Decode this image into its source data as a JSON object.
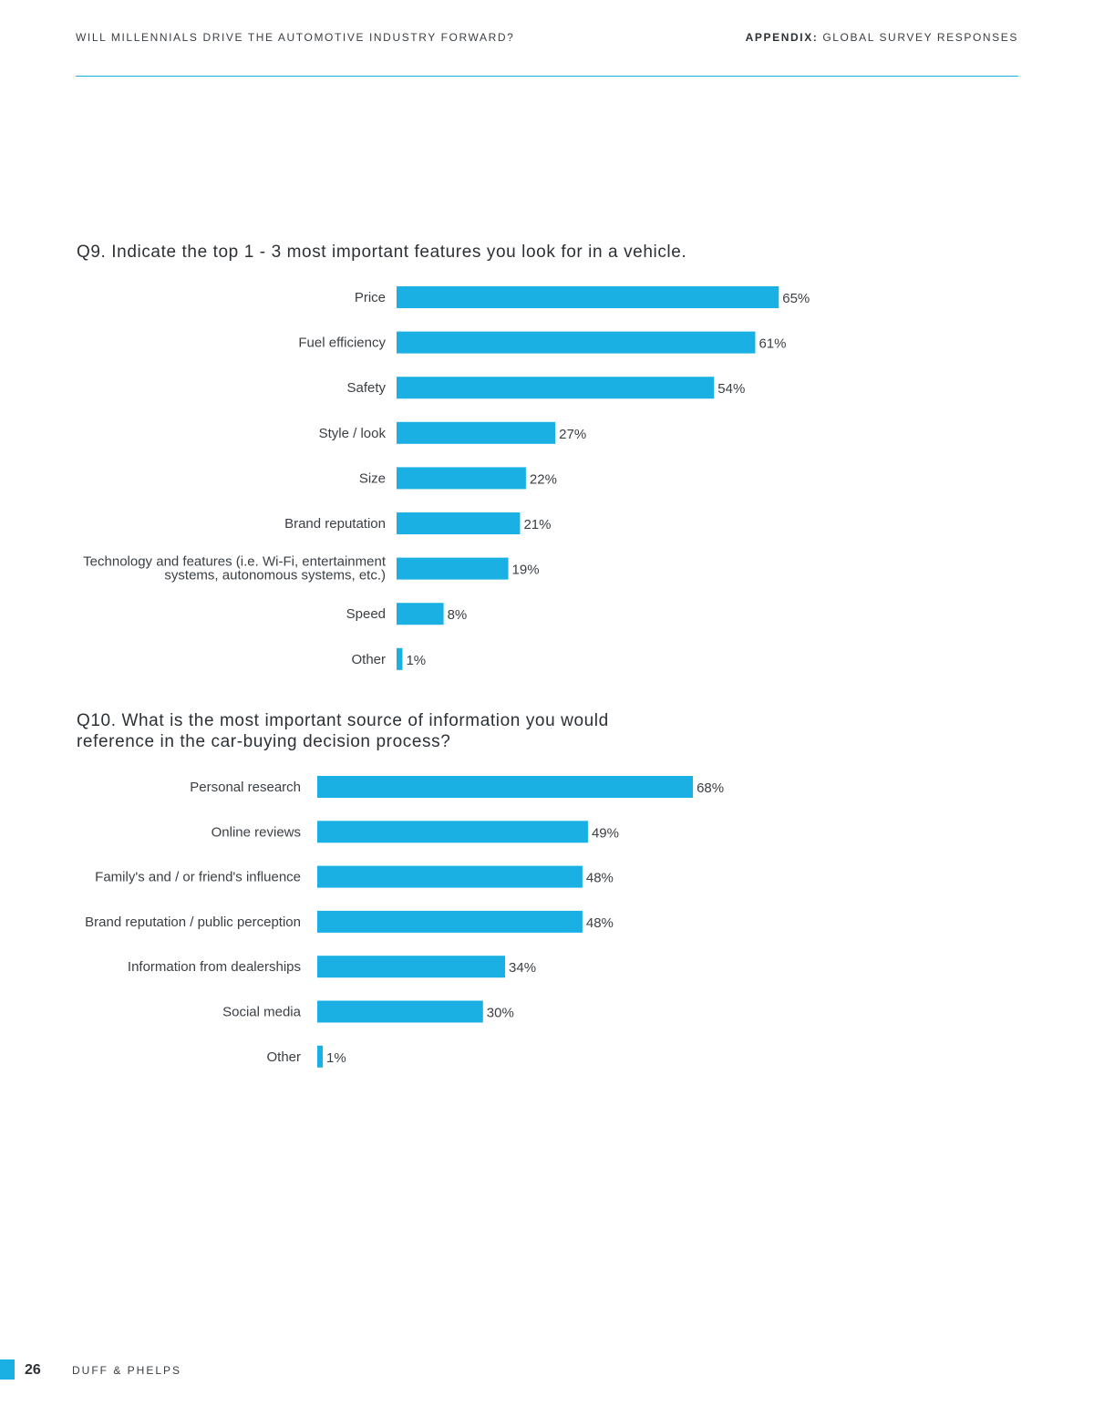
{
  "header": {
    "left": "WILL MILLENNIALS DRIVE THE AUTOMOTIVE INDUSTRY FORWARD?",
    "right_bold": "APPENDIX:",
    "right_rest": " GLOBAL SURVEY RESPONSES"
  },
  "colors": {
    "accent": "#1ab0e4",
    "text": "#3a3f44"
  },
  "chart_data": [
    {
      "type": "bar",
      "orientation": "horizontal",
      "title": "Q9. Indicate the top 1 - 3 most important features you look for in a vehicle.",
      "categories": [
        [
          "Price"
        ],
        [
          "Fuel efficiency"
        ],
        [
          "Safety"
        ],
        [
          "Style / look"
        ],
        [
          "Size"
        ],
        [
          "Brand reputation"
        ],
        [
          "Technology and features (i.e. Wi-Fi, entertainment",
          "systems, autonomous systems, etc.)"
        ],
        [
          "Speed"
        ],
        [
          "Other"
        ]
      ],
      "values": [
        65,
        61,
        54,
        27,
        22,
        21,
        19,
        8,
        1
      ],
      "value_labels": [
        "65%",
        "61%",
        "54%",
        "27%",
        "22%",
        "21%",
        "19%",
        "8%",
        "1%"
      ],
      "unit": "%"
    },
    {
      "type": "bar",
      "orientation": "horizontal",
      "title": [
        "Q10. What is the most important source of information you would",
        "reference in the car-buying decision process?"
      ],
      "categories": [
        [
          "Personal research"
        ],
        [
          "Online reviews"
        ],
        [
          "Family's and / or friend's influence"
        ],
        [
          "Brand reputation / public perception"
        ],
        [
          "Information from dealerships"
        ],
        [
          "Social media"
        ],
        [
          "Other"
        ]
      ],
      "values": [
        68,
        49,
        48,
        48,
        34,
        30,
        1
      ],
      "value_labels": [
        "68%",
        "49%",
        "48%",
        "48%",
        "34%",
        "30%",
        "1%"
      ],
      "unit": "%"
    }
  ],
  "footer": {
    "page": "26",
    "firm": "DUFF & PHELPS"
  }
}
